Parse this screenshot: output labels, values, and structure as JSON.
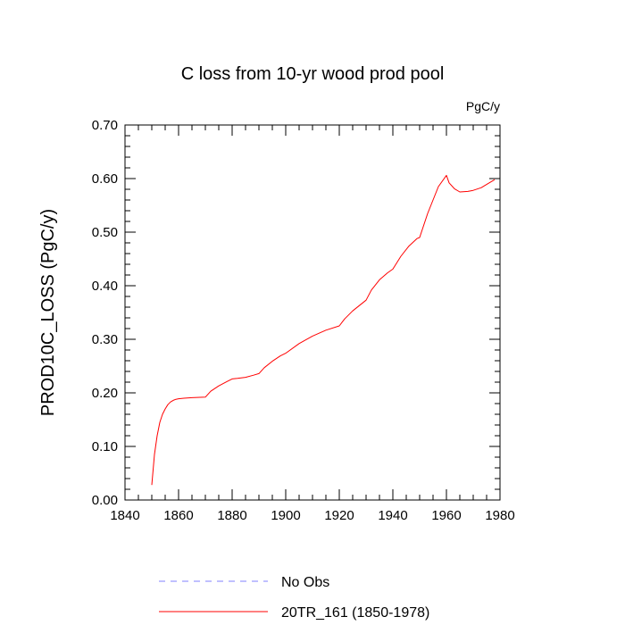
{
  "chart_data": {
    "type": "line",
    "title": "C loss from 10-yr wood prod pool",
    "units_label": "PgC/y",
    "ylabel": "PROD10C_LOSS  (PgC/y)",
    "xlabel": "",
    "xlim": [
      1840,
      1980
    ],
    "ylim": [
      0.0,
      0.7
    ],
    "x_ticks": [
      1840,
      1860,
      1880,
      1900,
      1920,
      1940,
      1960,
      1980
    ],
    "x_tick_labels": [
      "1840",
      "1860",
      "1880",
      "1900",
      "1920",
      "1940",
      "1960",
      "1980"
    ],
    "y_ticks": [
      0.0,
      0.1,
      0.2,
      0.3,
      0.4,
      0.5,
      0.6,
      0.7
    ],
    "y_tick_labels": [
      "0.00",
      "0.10",
      "0.20",
      "0.30",
      "0.40",
      "0.50",
      "0.60",
      "0.70"
    ],
    "grid": false,
    "legend_position": "bottom",
    "series": [
      {
        "name": "No Obs",
        "color": "#8080ff",
        "dash": true,
        "x": [],
        "y": []
      },
      {
        "name": "20TR_161 (1850-1978)",
        "color": "#ff0000",
        "dash": false,
        "x": [
          1850,
          1851,
          1852,
          1853,
          1854,
          1855,
          1856,
          1857,
          1858,
          1859,
          1860,
          1862,
          1865,
          1870,
          1872,
          1875,
          1878,
          1880,
          1882,
          1885,
          1888,
          1890,
          1892,
          1895,
          1898,
          1900,
          1905,
          1910,
          1915,
          1920,
          1922,
          1925,
          1930,
          1932,
          1935,
          1938,
          1940,
          1943,
          1946,
          1949,
          1950,
          1953,
          1957,
          1960,
          1961,
          1963,
          1965,
          1968,
          1970,
          1973,
          1975,
          1978
        ],
        "y": [
          0.028,
          0.085,
          0.12,
          0.145,
          0.16,
          0.17,
          0.178,
          0.183,
          0.186,
          0.188,
          0.189,
          0.19,
          0.191,
          0.192,
          0.203,
          0.213,
          0.221,
          0.226,
          0.227,
          0.229,
          0.233,
          0.236,
          0.247,
          0.259,
          0.269,
          0.274,
          0.292,
          0.306,
          0.317,
          0.325,
          0.338,
          0.353,
          0.373,
          0.392,
          0.411,
          0.424,
          0.431,
          0.455,
          0.474,
          0.488,
          0.49,
          0.535,
          0.585,
          0.606,
          0.592,
          0.581,
          0.575,
          0.576,
          0.578,
          0.583,
          0.589,
          0.598
        ]
      }
    ]
  }
}
